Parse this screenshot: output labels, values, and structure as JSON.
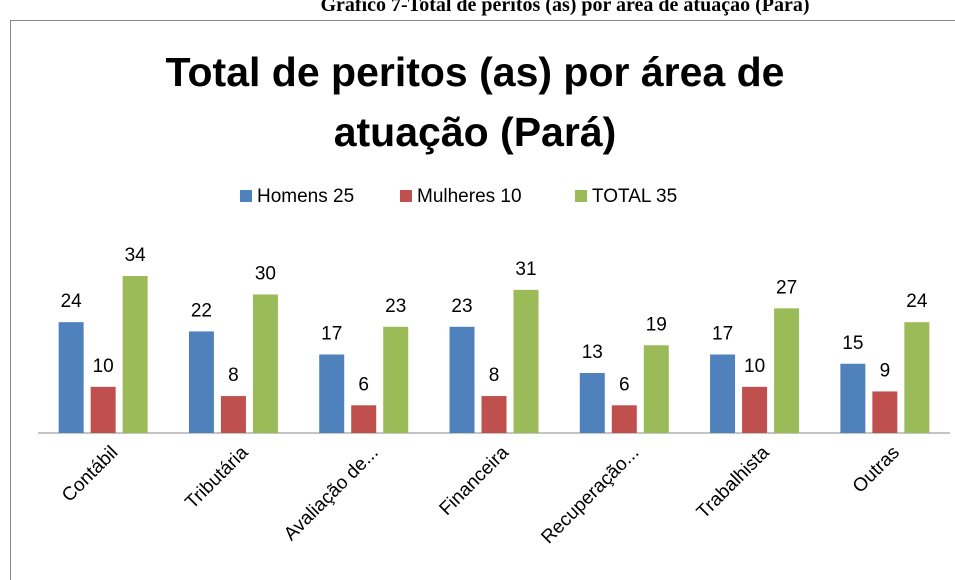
{
  "caption": "Gráfico 7-Total de peritos (as) por área de atuação (Pará)",
  "chart_data": {
    "type": "bar",
    "title": "Total de peritos (as) por área de atuação (Pará)",
    "categories": [
      "Contábil",
      "Tributária",
      "Avaliação de...",
      "Financeira",
      "Recuperação...",
      "Trabalhista",
      "Outras"
    ],
    "series": [
      {
        "name": "Homens 25",
        "color": "#4f81bd",
        "values": [
          24,
          22,
          17,
          23,
          13,
          17,
          15
        ]
      },
      {
        "name": "Mulheres 10",
        "color": "#c0504d",
        "values": [
          10,
          8,
          6,
          8,
          6,
          10,
          9
        ]
      },
      {
        "name": "TOTAL 35",
        "color": "#9bbb59",
        "values": [
          34,
          30,
          23,
          31,
          19,
          27,
          24
        ]
      }
    ],
    "legend": "top"
  }
}
